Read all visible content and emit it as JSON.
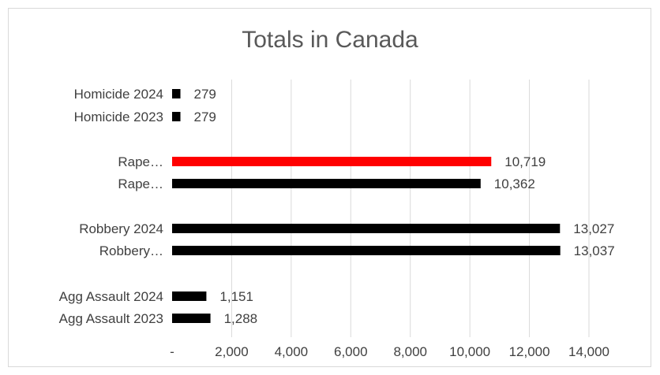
{
  "chart_data": {
    "type": "bar",
    "orientation": "horizontal",
    "title": "Totals in Canada",
    "xlabel": "",
    "ylabel": "",
    "xlim": [
      0,
      14000
    ],
    "grid": true,
    "categories": [
      "Homicide 2024",
      "Homicide 2023",
      "Rape…",
      "Rape…",
      "Robbery 2024",
      "Robbery…",
      "Agg Assault 2024",
      "Agg Assault 2023"
    ],
    "values": [
      279,
      279,
      10719,
      10362,
      13027,
      13037,
      1151,
      1288
    ],
    "data_labels": [
      "279",
      "279",
      "10,719",
      "10,362",
      "13,027",
      "13,037",
      "1,151",
      "1,288"
    ],
    "bar_colors": [
      "#000000",
      "#000000",
      "#ff0000",
      "#000000",
      "#000000",
      "#000000",
      "#000000",
      "#000000"
    ],
    "x_ticks": [
      {
        "value": 0,
        "label": "-"
      },
      {
        "value": 2000,
        "label": "2,000"
      },
      {
        "value": 4000,
        "label": "4,000"
      },
      {
        "value": 6000,
        "label": "6,000"
      },
      {
        "value": 8000,
        "label": "8,000"
      },
      {
        "value": 10000,
        "label": "10,000"
      },
      {
        "value": 12000,
        "label": "12,000"
      },
      {
        "value": 14000,
        "label": "14,000"
      }
    ],
    "colors": {
      "gridline": "#d9d9d9",
      "text": "#404040",
      "highlight": "#ff0000",
      "bar": "#000000"
    }
  }
}
